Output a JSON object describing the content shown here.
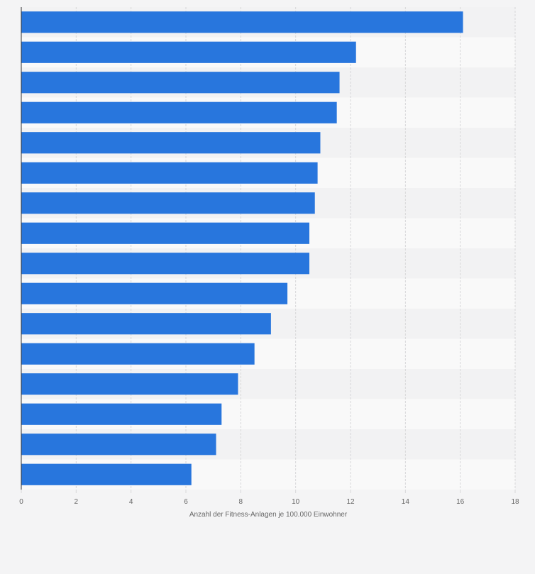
{
  "chart_data": {
    "type": "bar",
    "orientation": "horizontal",
    "categories": [
      "",
      "",
      "",
      "",
      "",
      "",
      "",
      "",
      "",
      "",
      "",
      "",
      "",
      "",
      "",
      ""
    ],
    "values": [
      16.1,
      12.2,
      11.6,
      11.5,
      10.9,
      10.8,
      10.7,
      10.5,
      10.5,
      9.7,
      9.1,
      8.5,
      7.9,
      7.3,
      7.1,
      6.2
    ],
    "xlabel": "Anzahl der Fitness-Anlagen je 100.000 Einwohner",
    "ylabel": "",
    "xlim": [
      0,
      18
    ],
    "ticks": [
      "0",
      "2",
      "4",
      "6",
      "8",
      "10",
      "12",
      "14",
      "16",
      "18"
    ],
    "grid": true,
    "legend": "none",
    "colors": {
      "bar": "#2876dd",
      "band_dark": "#f2f2f3",
      "band_light": "#f9f9f9",
      "grid": "#d7d7d9",
      "axis": "#333333",
      "text": "#666666",
      "background": "#f4f4f5"
    }
  }
}
